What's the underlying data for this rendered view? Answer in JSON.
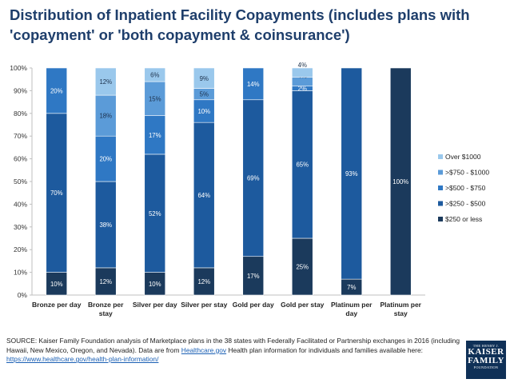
{
  "title": "Distribution of Inpatient Facility Copayments (includes plans with 'copayment' or 'both copayment & coinsurance')",
  "source": {
    "p1": "SOURCE: Kaiser Family Foundation analysis of Marketplace plans in the 38 states with Federally Facilitated or Partnership exchanges in 2016 (including Hawaii, New Mexico, Oregon, and Nevada). Data are from ",
    "link1": "Healthcare.gov",
    "p2": " Health plan information for individuals and families available here: ",
    "link2": "https://www.healthcare.gov/health-plan-information/"
  },
  "logo": {
    "line1": "THE HENRY J.",
    "line2a": "KAISER",
    "line2b": "FAMILY",
    "line3": "FOUNDATION"
  },
  "colors": {
    "le250": "#1b3a5c",
    "250_500": "#1d5a9e",
    "500_750": "#2f78c4",
    "750_1000": "#5b9bd8",
    "over1000": "#9ac8ec"
  },
  "chart_data": {
    "type": "bar",
    "stacked": true,
    "ylim": [
      0,
      100
    ],
    "yticks": [
      "0%",
      "10%",
      "20%",
      "30%",
      "40%",
      "50%",
      "60%",
      "70%",
      "80%",
      "90%",
      "100%"
    ],
    "categories": [
      "Bronze per day",
      "Bronze per stay",
      "Silver per day",
      "Silver per stay",
      "Gold per day",
      "Gold per stay",
      "Platinum per day",
      "Platinum per stay"
    ],
    "series": [
      {
        "name": "$250 or less",
        "key": "le250",
        "values": [
          10,
          12,
          10,
          12,
          17,
          25,
          7,
          100
        ],
        "labels": [
          "10%",
          "12%",
          "10%",
          "12%",
          "17%",
          "25%",
          "7%",
          "100%"
        ]
      },
      {
        "name": ">$250 - $500",
        "key": "250_500",
        "values": [
          70,
          38,
          52,
          64,
          69,
          65,
          93,
          0
        ],
        "labels": [
          "70%",
          "38%",
          "52%",
          "64%",
          "69%",
          "65%",
          "93%",
          ""
        ]
      },
      {
        "name": ">$500 - $750",
        "key": "500_750",
        "values": [
          20,
          20,
          17,
          10,
          14,
          2,
          0,
          0
        ],
        "labels": [
          "20%",
          "20%",
          "17%",
          "10%",
          "14%",
          "2%",
          "",
          ""
        ]
      },
      {
        "name": ">$750 - $1000",
        "key": "750_1000",
        "values": [
          0,
          18,
          15,
          5,
          0,
          4,
          0,
          0
        ],
        "labels": [
          "",
          "18%",
          "15%",
          "5%",
          "",
          "4%",
          "",
          ""
        ]
      },
      {
        "name": "Over $1000",
        "key": "over1000",
        "values": [
          0,
          12,
          6,
          9,
          0,
          4,
          0,
          0
        ],
        "labels": [
          "",
          "12%",
          "6%",
          "9%",
          "",
          "4%",
          "",
          ""
        ]
      }
    ],
    "legend_order": [
      "over1000",
      "750_1000",
      "500_750",
      "250_500",
      "le250"
    ],
    "legend_placement": "right"
  }
}
